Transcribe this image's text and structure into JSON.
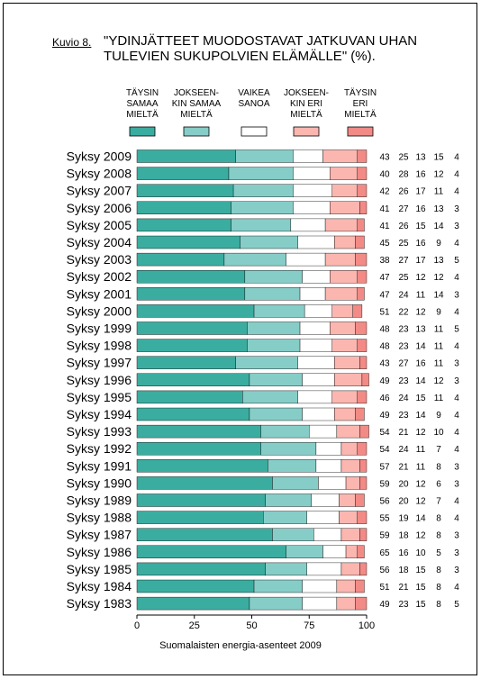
{
  "figure_label": "Kuvio 8.",
  "title": "\"YDINJÄTTEET MUODOSTAVAT JATKUVAN UHAN TULEVIEN SUKUPOLVIEN ELÄMÄLLE\" (%).",
  "source": "Suomalaisten energia-asenteet 2009",
  "colors": {
    "taysin_samaa": "#3aada0",
    "jokseenkin_samaa": "#86cdc8",
    "vaikea_sanoa": "#ffffff",
    "jokseenkin_eri": "#fbb6b0",
    "taysin_eri": "#f28a86"
  },
  "chart_data": {
    "type": "bar",
    "orientation": "horizontal",
    "stacked": true,
    "categories": [
      "Syksy 2009",
      "Syksy 2008",
      "Syksy 2007",
      "Syksy 2006",
      "Syksy 2005",
      "Syksy 2004",
      "Syksy 2003",
      "Syksy 2002",
      "Syksy 2001",
      "Syksy 2000",
      "Syksy 1999",
      "Syksy 1998",
      "Syksy 1997",
      "Syksy 1996",
      "Syksy 1995",
      "Syksy 1994",
      "Syksy 1993",
      "Syksy 1992",
      "Syksy 1991",
      "Syksy 1990",
      "Syksy 1989",
      "Syksy 1988",
      "Syksy 1987",
      "Syksy 1986",
      "Syksy 1985",
      "Syksy 1984",
      "Syksy 1983"
    ],
    "series": [
      {
        "name": "TÄYSIN SAMAA MIELTÄ",
        "color": "#3aada0",
        "values": [
          43,
          40,
          42,
          41,
          41,
          45,
          38,
          47,
          47,
          51,
          48,
          48,
          43,
          49,
          46,
          49,
          54,
          54,
          57,
          59,
          56,
          55,
          59,
          65,
          56,
          51,
          49
        ]
      },
      {
        "name": "JOKSEEN-KIN SAMAA MIELTÄ",
        "color": "#86cdc8",
        "values": [
          25,
          28,
          26,
          27,
          26,
          25,
          27,
          25,
          24,
          22,
          23,
          23,
          27,
          23,
          24,
          23,
          21,
          24,
          21,
          20,
          20,
          19,
          18,
          16,
          18,
          21,
          23
        ]
      },
      {
        "name": "VAIKEA SANOA",
        "color": "#ffffff",
        "values": [
          13,
          16,
          17,
          16,
          15,
          16,
          17,
          12,
          11,
          12,
          13,
          14,
          16,
          14,
          15,
          14,
          12,
          11,
          11,
          12,
          12,
          14,
          12,
          10,
          15,
          15,
          15
        ]
      },
      {
        "name": "JOKSEEN-KIN ERI MIELTÄ",
        "color": "#fbb6b0",
        "values": [
          15,
          12,
          11,
          13,
          14,
          9,
          13,
          12,
          14,
          9,
          11,
          11,
          11,
          12,
          11,
          9,
          10,
          7,
          8,
          6,
          7,
          8,
          8,
          5,
          8,
          8,
          8
        ]
      },
      {
        "name": "TÄYSIN ERI MIELTÄ",
        "color": "#f28a86",
        "values": [
          4,
          4,
          4,
          3,
          3,
          4,
          5,
          4,
          3,
          4,
          5,
          4,
          3,
          3,
          4,
          4,
          4,
          4,
          3,
          3,
          4,
          4,
          3,
          3,
          3,
          4,
          5
        ]
      }
    ],
    "xticks": [
      "0",
      "25",
      "50",
      "75",
      "100"
    ],
    "xlim": [
      0,
      100
    ],
    "legend_placement": "top",
    "grid": false
  }
}
